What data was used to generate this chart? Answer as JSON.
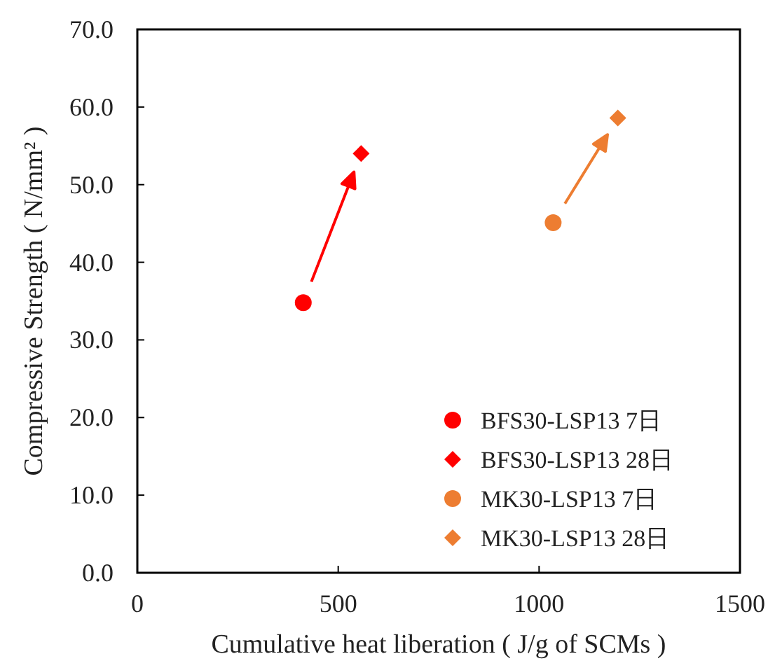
{
  "chart_data": {
    "type": "scatter",
    "xlabel": "Cumulative heat liberation ( J/g of SCMs )",
    "ylabel": "Compressive Strength ( N/mm² )",
    "xlim": [
      0,
      1500
    ],
    "xticks": [
      0,
      500,
      1000,
      1500
    ],
    "ylim": [
      0,
      70
    ],
    "yticks": [
      {
        "value": 0,
        "label": "0.0"
      },
      {
        "value": 10,
        "label": "10.0"
      },
      {
        "value": 20,
        "label": "20.0"
      },
      {
        "value": 30,
        "label": "30.0"
      },
      {
        "value": 40,
        "label": "40.0"
      },
      {
        "value": 50,
        "label": "50.0"
      },
      {
        "value": 60,
        "label": "60.0"
      },
      {
        "value": 70,
        "label": "70.0"
      }
    ],
    "grid": false,
    "legend": "bottom right",
    "series": [
      {
        "name": "BFS30-LSP13 7日",
        "color": "#ff0000",
        "marker": "circle",
        "x": [
          413
        ],
        "values": [
          34.8
        ]
      },
      {
        "name": "BFS30-LSP13 28日",
        "color": "#ff0000",
        "marker": "diamond",
        "x": [
          557
        ],
        "values": [
          54.0
        ]
      },
      {
        "name": "MK30-LSP13 7日",
        "color": "#ed7d31",
        "marker": "circle",
        "x": [
          1035
        ],
        "values": [
          45.1
        ]
      },
      {
        "name": "MK30-LSP13 28日",
        "color": "#ed7d31",
        "marker": "diamond",
        "x": [
          1196
        ],
        "values": [
          58.6
        ]
      }
    ]
  }
}
